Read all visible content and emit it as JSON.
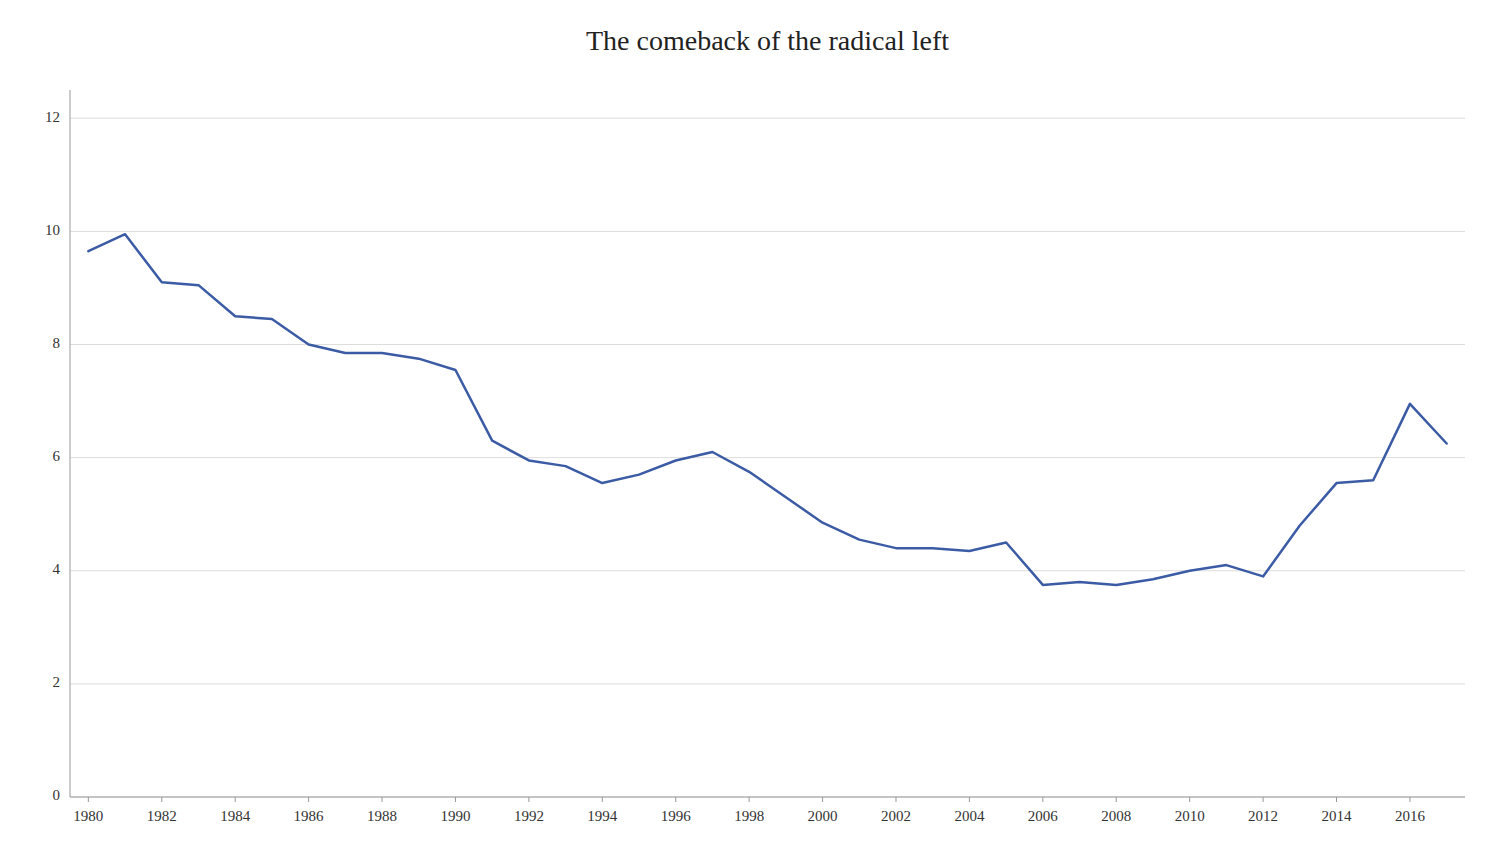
{
  "chart_data": {
    "type": "line",
    "title": "The comeback of the radical left",
    "x": [
      1980,
      1981,
      1982,
      1983,
      1984,
      1985,
      1986,
      1987,
      1988,
      1989,
      1990,
      1991,
      1992,
      1993,
      1994,
      1995,
      1996,
      1997,
      1998,
      1999,
      2000,
      2001,
      2002,
      2003,
      2004,
      2005,
      2006,
      2007,
      2008,
      2009,
      2010,
      2011,
      2012,
      2013,
      2014,
      2015,
      2016,
      2017
    ],
    "values": [
      9.65,
      9.95,
      9.1,
      9.05,
      8.5,
      8.45,
      8.0,
      7.85,
      7.85,
      7.75,
      7.55,
      6.3,
      5.95,
      5.85,
      5.55,
      5.7,
      5.95,
      6.1,
      5.75,
      5.3,
      4.85,
      4.55,
      4.4,
      4.4,
      4.35,
      4.5,
      3.75,
      3.8,
      3.75,
      3.85,
      4.0,
      4.1,
      3.9,
      4.8,
      5.55,
      5.6,
      6.95,
      6.25
    ],
    "color": "#3B5BA5",
    "xlim": [
      1979.5,
      2017.5
    ],
    "ylim": [
      0,
      12.5
    ],
    "xticks": [
      1980,
      1982,
      1984,
      1986,
      1988,
      1990,
      1992,
      1994,
      1996,
      1998,
      2000,
      2002,
      2004,
      2006,
      2008,
      2010,
      2012,
      2014,
      2016
    ],
    "yticks": [
      0,
      2,
      4,
      6,
      8,
      10,
      12
    ],
    "grid": true
  }
}
